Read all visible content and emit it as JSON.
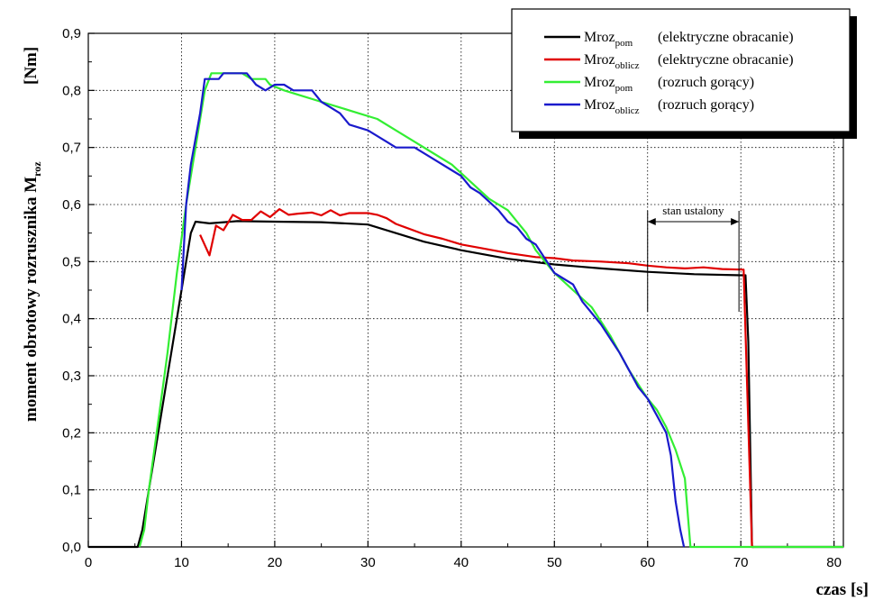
{
  "chart_data": {
    "type": "line",
    "xlabel": "czas [s]",
    "ylabel_main": "moment obrotowy rozrusznika M",
    "ylabel_sub": "roz",
    "ylabel_unit": "[Nm]",
    "xlim": [
      0,
      81
    ],
    "ylim": [
      0,
      0.9
    ],
    "x_ticks": [
      0,
      10,
      20,
      30,
      40,
      50,
      60,
      70,
      80
    ],
    "x_tick_labels": [
      "0",
      "10",
      "20",
      "30",
      "40",
      "50",
      "60",
      "70",
      "80"
    ],
    "y_ticks": [
      0,
      0.1,
      0.2,
      0.3,
      0.4,
      0.5,
      0.6,
      0.7,
      0.8,
      0.9
    ],
    "y_tick_labels": [
      "0,0",
      "0,1",
      "0,2",
      "0,3",
      "0,4",
      "0,5",
      "0,6",
      "0,7",
      "0,8",
      "0,9"
    ],
    "grid": true,
    "legend_position": "top-right",
    "series": [
      {
        "name_main": "Mroz",
        "name_sub": "pom",
        "description": "(elektryczne obracanie)",
        "color": "#000000",
        "points": [
          [
            0,
            0
          ],
          [
            5.3,
            0
          ],
          [
            5.8,
            0.03
          ],
          [
            6.5,
            0.1
          ],
          [
            7.5,
            0.2
          ],
          [
            8.5,
            0.3
          ],
          [
            9.5,
            0.4
          ],
          [
            10.5,
            0.5
          ],
          [
            11,
            0.55
          ],
          [
            11.5,
            0.57
          ],
          [
            13,
            0.567
          ],
          [
            16,
            0.571
          ],
          [
            20,
            0.57
          ],
          [
            25,
            0.569
          ],
          [
            30,
            0.565
          ],
          [
            33,
            0.55
          ],
          [
            36,
            0.535
          ],
          [
            40,
            0.52
          ],
          [
            45,
            0.505
          ],
          [
            50,
            0.495
          ],
          [
            55,
            0.488
          ],
          [
            60,
            0.482
          ],
          [
            65,
            0.478
          ],
          [
            70,
            0.476
          ],
          [
            70.5,
            0.476
          ],
          [
            70.8,
            0.36
          ],
          [
            71.2,
            0
          ],
          [
            81,
            0
          ]
        ]
      },
      {
        "name_main": "Mroz",
        "name_sub": "oblicz",
        "description": "(elektryczne obracanie)",
        "color": "#e00000",
        "points": [
          [
            12,
            0.547
          ],
          [
            13,
            0.511
          ],
          [
            13.7,
            0.563
          ],
          [
            14.5,
            0.555
          ],
          [
            15.5,
            0.582
          ],
          [
            16.5,
            0.573
          ],
          [
            17.5,
            0.573
          ],
          [
            18.5,
            0.588
          ],
          [
            19.5,
            0.578
          ],
          [
            20.5,
            0.592
          ],
          [
            21.5,
            0.582
          ],
          [
            22.5,
            0.584
          ],
          [
            24,
            0.586
          ],
          [
            25,
            0.581
          ],
          [
            26,
            0.59
          ],
          [
            27,
            0.581
          ],
          [
            28,
            0.585
          ],
          [
            30,
            0.585
          ],
          [
            31,
            0.582
          ],
          [
            32,
            0.576
          ],
          [
            33,
            0.566
          ],
          [
            34,
            0.56
          ],
          [
            36,
            0.548
          ],
          [
            38,
            0.54
          ],
          [
            40,
            0.53
          ],
          [
            42,
            0.524
          ],
          [
            45,
            0.515
          ],
          [
            48,
            0.508
          ],
          [
            50,
            0.506
          ],
          [
            52,
            0.502
          ],
          [
            55,
            0.5
          ],
          [
            58,
            0.497
          ],
          [
            60,
            0.493
          ],
          [
            62,
            0.49
          ],
          [
            64,
            0.488
          ],
          [
            66,
            0.49
          ],
          [
            68,
            0.487
          ],
          [
            70,
            0.486
          ],
          [
            70.3,
            0.486
          ],
          [
            71.2,
            0
          ],
          [
            71.4,
            0
          ]
        ]
      },
      {
        "name_main": "Mroz",
        "name_sub": "pom",
        "description": "(rozruch gorący)",
        "color": "#33ee33",
        "points": [
          [
            5.5,
            0
          ],
          [
            6,
            0.03
          ],
          [
            6.5,
            0.1
          ],
          [
            7.5,
            0.22
          ],
          [
            8.5,
            0.34
          ],
          [
            9.5,
            0.48
          ],
          [
            10.5,
            0.6
          ],
          [
            11.5,
            0.7
          ],
          [
            12.5,
            0.8
          ],
          [
            13.2,
            0.83
          ],
          [
            16.5,
            0.83
          ],
          [
            17.5,
            0.82
          ],
          [
            19,
            0.82
          ],
          [
            19.5,
            0.81
          ],
          [
            21,
            0.8
          ],
          [
            23,
            0.79
          ],
          [
            25,
            0.78
          ],
          [
            27,
            0.77
          ],
          [
            29,
            0.76
          ],
          [
            31,
            0.75
          ],
          [
            33,
            0.73
          ],
          [
            35,
            0.71
          ],
          [
            37,
            0.69
          ],
          [
            39,
            0.67
          ],
          [
            41,
            0.64
          ],
          [
            43,
            0.61
          ],
          [
            45,
            0.59
          ],
          [
            47,
            0.55
          ],
          [
            48,
            0.52
          ],
          [
            49,
            0.5
          ],
          [
            50,
            0.48
          ],
          [
            52,
            0.45
          ],
          [
            54,
            0.42
          ],
          [
            56,
            0.37
          ],
          [
            58,
            0.31
          ],
          [
            60,
            0.26
          ],
          [
            61,
            0.24
          ],
          [
            62,
            0.21
          ],
          [
            63,
            0.17
          ],
          [
            64,
            0.12
          ],
          [
            64.6,
            0
          ],
          [
            81,
            0
          ]
        ]
      },
      {
        "name_main": "Mroz",
        "name_sub": "oblicz",
        "description": "(rozruch gorący)",
        "color": "#1a1acc",
        "points": [
          [
            10,
            0.45
          ],
          [
            10.5,
            0.6
          ],
          [
            11,
            0.67
          ],
          [
            12,
            0.76
          ],
          [
            12.5,
            0.82
          ],
          [
            14,
            0.82
          ],
          [
            14.5,
            0.83
          ],
          [
            17,
            0.83
          ],
          [
            18,
            0.81
          ],
          [
            19,
            0.8
          ],
          [
            20,
            0.81
          ],
          [
            21,
            0.81
          ],
          [
            22,
            0.8
          ],
          [
            24,
            0.8
          ],
          [
            25,
            0.78
          ],
          [
            26,
            0.77
          ],
          [
            27,
            0.76
          ],
          [
            28,
            0.74
          ],
          [
            30,
            0.73
          ],
          [
            32,
            0.71
          ],
          [
            33,
            0.7
          ],
          [
            35,
            0.7
          ],
          [
            37,
            0.68
          ],
          [
            39,
            0.66
          ],
          [
            40,
            0.65
          ],
          [
            41,
            0.63
          ],
          [
            42,
            0.62
          ],
          [
            44,
            0.59
          ],
          [
            45,
            0.57
          ],
          [
            46,
            0.56
          ],
          [
            47,
            0.54
          ],
          [
            48,
            0.53
          ],
          [
            50,
            0.48
          ],
          [
            52,
            0.46
          ],
          [
            53,
            0.43
          ],
          [
            55,
            0.39
          ],
          [
            57,
            0.34
          ],
          [
            59,
            0.28
          ],
          [
            60,
            0.26
          ],
          [
            61,
            0.23
          ],
          [
            62,
            0.2
          ],
          [
            62.5,
            0.16
          ],
          [
            63,
            0.08
          ],
          [
            63.5,
            0.03
          ],
          [
            63.9,
            0
          ]
        ]
      }
    ],
    "annotations": [
      {
        "text": "stan ustalony",
        "x_start": 60,
        "x_end": 69.8,
        "y": 0.57
      }
    ]
  }
}
